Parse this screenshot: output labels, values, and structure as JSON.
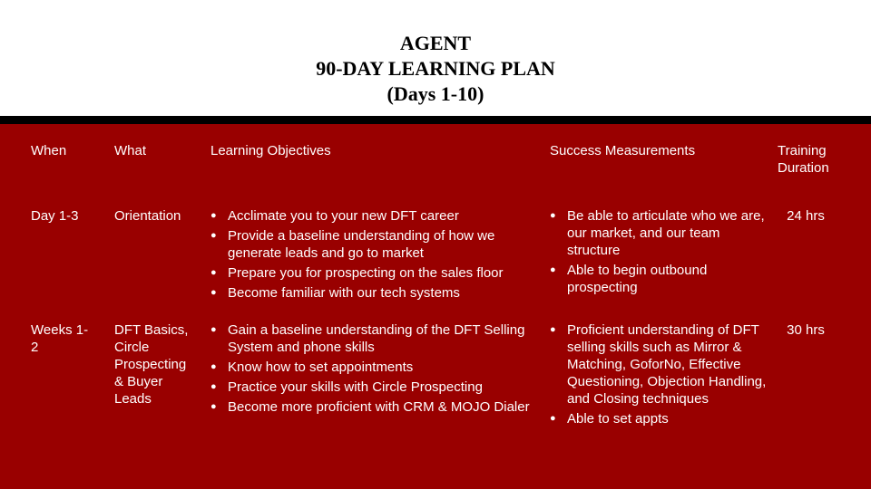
{
  "title": {
    "line1": "AGENT",
    "line2": "90-DAY LEARNING PLAN",
    "line3": "(Days 1-10)"
  },
  "table": {
    "headers": {
      "when": "When",
      "what": "What",
      "objectives": "Learning Objectives",
      "measurements": "Success Measurements",
      "duration": "Training Duration"
    },
    "rows": [
      {
        "when": "Day 1-3",
        "what": "Orientation",
        "objectives": [
          "Acclimate you to your new DFT career",
          "Provide a baseline understanding of how we generate leads and go to market",
          "Prepare you for prospecting on the sales floor",
          "Become familiar with our tech systems"
        ],
        "measurements": [
          "Be able to articulate who we are, our market, and our team structure",
          "Able to begin outbound prospecting"
        ],
        "duration": "24 hrs"
      },
      {
        "when": "Weeks 1-2",
        "what": "DFT Basics, Circle Prospecting & Buyer Leads",
        "objectives": [
          "Gain a baseline understanding of the DFT Selling System and phone skills",
          "Know how to set appointments",
          "Practice your skills with Circle Prospecting",
          "Become more proficient with CRM & MOJO Dialer"
        ],
        "measurements": [
          "Proficient understanding of DFT selling skills such as Mirror & Matching, GoforNo, Effective Questioning, Objection Handling, and Closing techniques",
          "Able to set appts"
        ],
        "duration": "30 hrs"
      }
    ]
  },
  "colors": {
    "panel_background": "#990000",
    "divider": "#000000",
    "title_text": "#000000",
    "panel_text": "#ffffff"
  }
}
